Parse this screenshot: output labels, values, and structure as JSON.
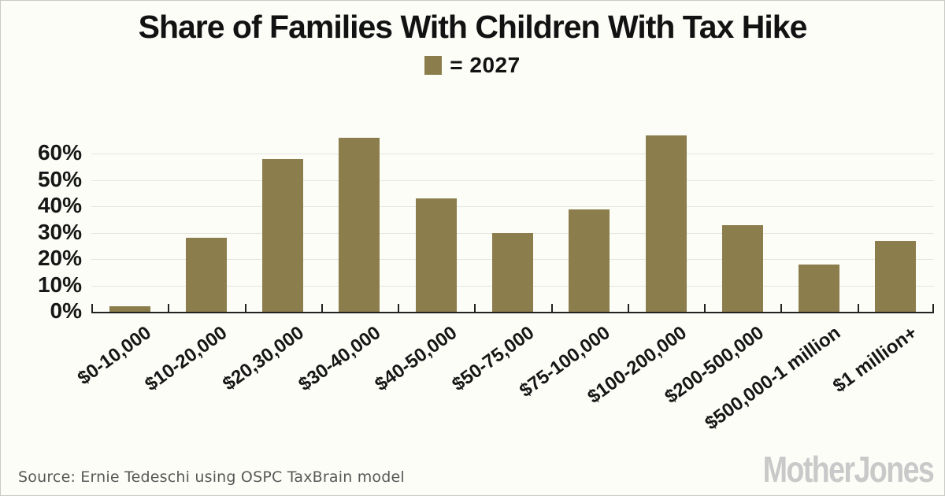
{
  "title": "Share of Families With Children With Tax Hike",
  "legend": {
    "label": "= 2027",
    "swatch_color": "#8b7d4c",
    "swatch_icon": "legend-swatch-square"
  },
  "chart_data": {
    "type": "bar",
    "title": "Share of Families With Children With Tax Hike",
    "categories": [
      "$0-10,000",
      "$10-20,000",
      "$20,30,000",
      "$30-40,000",
      "$40-50,000",
      "$50-75,000",
      "$75-100,000",
      "$100-200,000",
      "$200-500,000",
      "$500,000-1 million",
      "$1 million+"
    ],
    "values": [
      2,
      28,
      58,
      66,
      43,
      30,
      39,
      67,
      33,
      18,
      27
    ],
    "series_name": "2027",
    "xlabel": "",
    "ylabel": "",
    "ylim": [
      0,
      70
    ],
    "yticks": [
      "0%",
      "10%",
      "20%",
      "30%",
      "40%",
      "50%",
      "60%"
    ],
    "grid": true,
    "legend_position": "top-center",
    "bar_color": "#8b7d4c",
    "gridline_color": "#e5e5e0",
    "axis_color": "#222222"
  },
  "footer": {
    "source": "Source: Ernie Tedeschi using OSPC TaxBrain model",
    "logo": "MotherJones"
  }
}
